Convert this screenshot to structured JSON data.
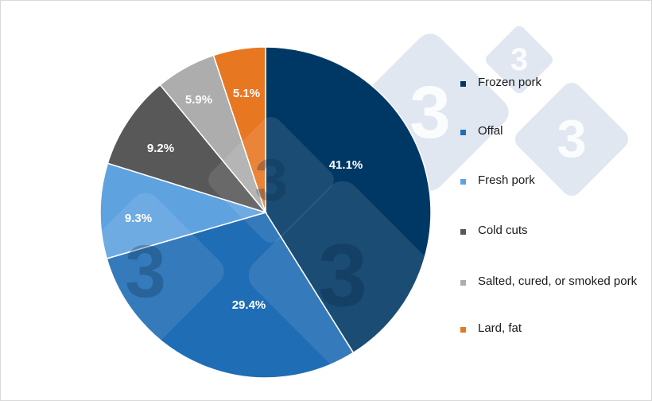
{
  "chart_data": {
    "type": "pie",
    "title": "",
    "legend_position": "right",
    "slices": [
      {
        "label": "Frozen pork",
        "value": 41.1,
        "display": "41.1%",
        "color": "#003865"
      },
      {
        "label": "Offal",
        "value": 29.4,
        "display": "29.4%",
        "color": "#1f6db5"
      },
      {
        "label": "Fresh pork",
        "value": 9.3,
        "display": "9.3%",
        "color": "#5fa2e0"
      },
      {
        "label": "Cold cuts",
        "value": 9.2,
        "display": "9.2%",
        "color": "#585858"
      },
      {
        "label": "Salted, cured, or smoked pork",
        "value": 5.9,
        "display": "5.9%",
        "color": "#adadad"
      },
      {
        "label": "Lard, fat",
        "value": 5.1,
        "display": "5.1%",
        "color": "#e87722"
      }
    ]
  },
  "watermark": {
    "glyph": "3",
    "color": "#c7d4e3"
  }
}
